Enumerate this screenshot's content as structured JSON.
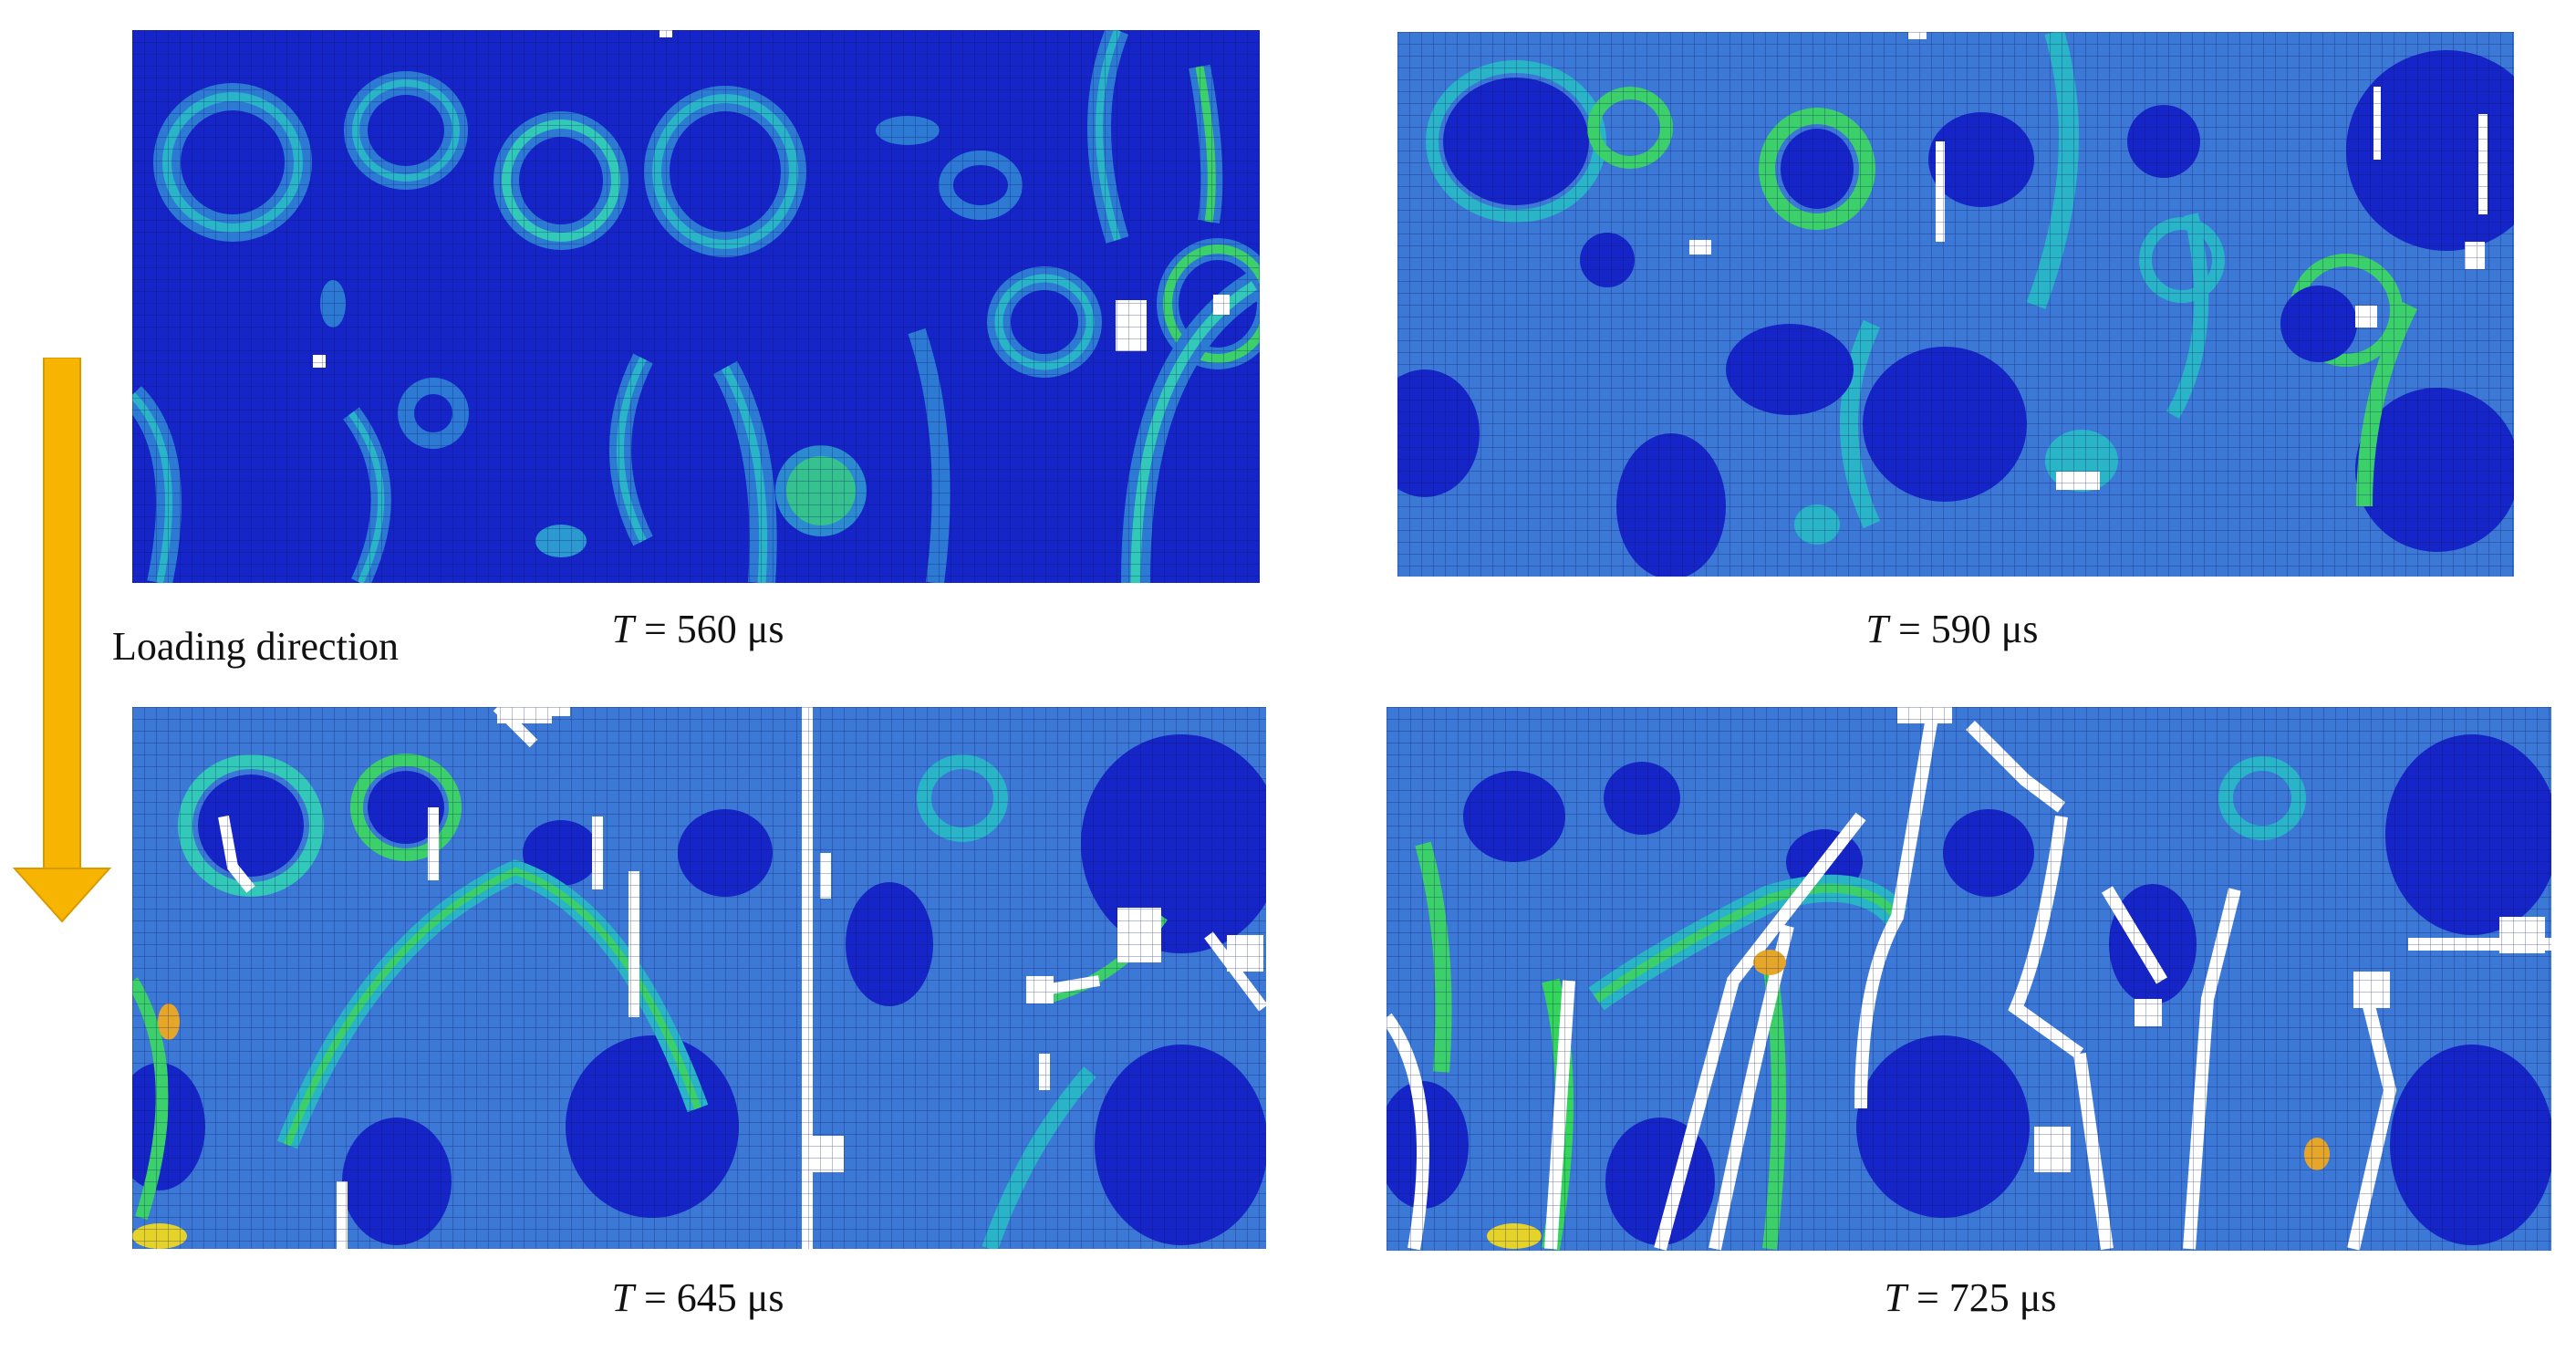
{
  "colors": {
    "background_field": "#3c78d6",
    "deep_blue": "#0f1fbd",
    "ring_teal": "#2ec0cf",
    "ring_green": "#33d65a",
    "hot_yellow": "#e6d32a",
    "crack_white": "#ffffff",
    "arrow_orange": "#f7b400",
    "mesh_line": "#0a1260"
  },
  "annotation": {
    "loading_label": "Loading direction",
    "arrow_icon": "down-arrow-icon"
  },
  "panels": [
    {
      "id": "p560",
      "time_symbol": "T",
      "time_text": " = 560 μs"
    },
    {
      "id": "p590",
      "time_symbol": "T",
      "time_text": " = 590 μs"
    },
    {
      "id": "p645",
      "time_symbol": "T",
      "time_text": " = 645 μs"
    },
    {
      "id": "p725",
      "time_symbol": "T",
      "time_text": " = 725 μs"
    }
  ]
}
